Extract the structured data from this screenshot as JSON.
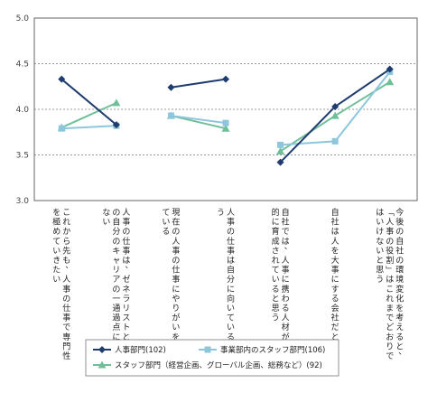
{
  "chart_data": {
    "type": "line",
    "ylim": [
      3.0,
      5.0
    ],
    "yticks": [
      "3.0",
      "3.5",
      "4.0",
      "4.5",
      "5.0"
    ],
    "grid": "horizontal dashed",
    "categories": [
      "これから先も、人事の仕事で専門性を極めていきたい",
      "人事の仕事は、ゼネラリストとしての自分のキャリアの一通過点に過ぎない",
      "現在の人事の仕事にやりがいを感じている",
      "人事の仕事は自分に向いていると思う",
      "自社では、人事に携わる人材が計画的に育成されていると思う",
      "自社は人を大事にする会社だと思う",
      "今後の自社の環境変化を考えると、「人事の役割」はこれまでどおりではいけないと思う"
    ],
    "groups": [
      [
        0,
        1
      ],
      [
        2,
        3
      ],
      [
        4,
        5,
        6
      ]
    ],
    "series": [
      {
        "name": "人事部門(102)",
        "color": "#1f3c6e",
        "marker": "diamond",
        "values": [
          4.33,
          3.83,
          4.24,
          4.33,
          3.42,
          4.03,
          4.44
        ]
      },
      {
        "name": "事業部内のスタッフ部門(106)",
        "color": "#8ec6dd",
        "marker": "square",
        "values": [
          3.79,
          3.82,
          3.93,
          3.85,
          3.61,
          3.65,
          4.41
        ]
      },
      {
        "name": "スタッフ部門（経営企画、グローバル企画、総務など）(92)",
        "color": "#6fbf98",
        "marker": "triangle",
        "values": [
          3.8,
          4.07,
          3.93,
          3.79,
          3.54,
          3.93,
          4.3
        ]
      }
    ],
    "legend_position": "bottom-center"
  }
}
